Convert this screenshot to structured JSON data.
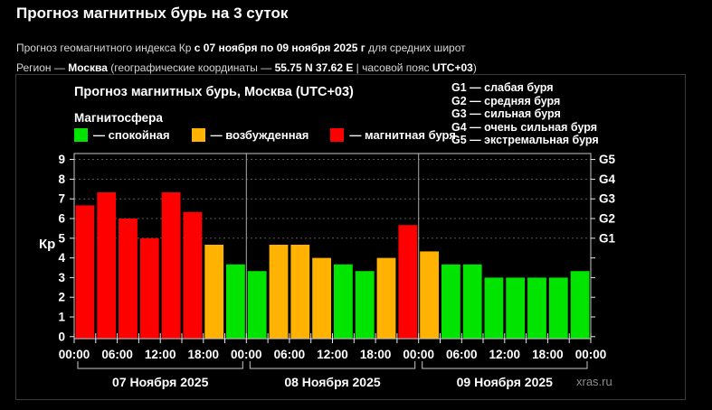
{
  "page": {
    "title": "Прогноз магнитных бурь на 3 суток",
    "subtitle": {
      "prefix": "Прогноз геомагнитного индекса Кр ",
      "bold_range": "с 07 ноября по 09 ноября 2025 г",
      "suffix": " для средних широт"
    },
    "region_line": {
      "label": "Регион — ",
      "region": "Москва",
      "coords_prefix": " (географические координаты — ",
      "coords": "55.75 N 37.62 E",
      "tz_prefix": " | часовой пояс ",
      "tz": "UTC+03",
      "close": ")"
    },
    "watermark": "xras.ru"
  },
  "panel": {
    "chart_title": "Прогноз магнитных бурь, Москва (UTC+03)",
    "legend_title": "Магнитосфера",
    "legend": [
      {
        "key": "quiet",
        "color": "#00e400",
        "label": "— спокойная"
      },
      {
        "key": "excited",
        "color": "#ffb300",
        "label": "— возбужденная"
      },
      {
        "key": "storm",
        "color": "#ff0000",
        "label": "— магнитная буря"
      }
    ],
    "g_scale": [
      "G1 — слабая буря",
      "G2 — средняя буря",
      "G3 — сильная буря",
      "G4 — очень сильная буря",
      "G5 — экстремальная буря"
    ]
  },
  "chart_data": {
    "type": "bar",
    "title": "Прогноз магнитных бурь, Москва (UTC+03)",
    "ylabel": "Кр",
    "ylim": [
      0,
      9.3
    ],
    "yticks": [
      0,
      1,
      2,
      3,
      4,
      5,
      6,
      7,
      8,
      9
    ],
    "gridlines_at": [
      5,
      6,
      7,
      8,
      9
    ],
    "grid_style": "dashed",
    "legend_position": "top",
    "right_axis": [
      {
        "value": 5,
        "label": "G1"
      },
      {
        "value": 6,
        "label": "G2"
      },
      {
        "value": 7,
        "label": "G3"
      },
      {
        "value": 8,
        "label": "G4"
      },
      {
        "value": 9,
        "label": "G5"
      }
    ],
    "hours_per_bar": 3,
    "bar_start_hours": [
      "00:00",
      "03:00",
      "06:00",
      "09:00",
      "12:00",
      "15:00",
      "18:00",
      "21:00"
    ],
    "x_tick_labels": [
      "00:00",
      "06:00",
      "12:00",
      "18:00",
      "00:00",
      "06:00",
      "12:00",
      "18:00",
      "00:00",
      "06:00",
      "12:00",
      "18:00",
      "00:00"
    ],
    "days": [
      {
        "label": "07 Ноября 2025",
        "values": [
          6.67,
          7.33,
          6.0,
          5.0,
          7.33,
          6.33,
          4.67,
          3.67
        ]
      },
      {
        "label": "08 Ноября 2025",
        "values": [
          3.33,
          4.67,
          4.67,
          4.0,
          3.67,
          3.33,
          4.0,
          5.67
        ]
      },
      {
        "label": "09 Ноября 2025",
        "values": [
          4.33,
          3.67,
          3.67,
          3.0,
          3.0,
          3.0,
          3.0,
          3.33
        ]
      }
    ],
    "color_rules": {
      "storm_min_kp": 5,
      "excited_min_kp": 4
    },
    "colors": {
      "quiet": "#00e400",
      "excited": "#ffb300",
      "storm": "#ff0000"
    }
  }
}
